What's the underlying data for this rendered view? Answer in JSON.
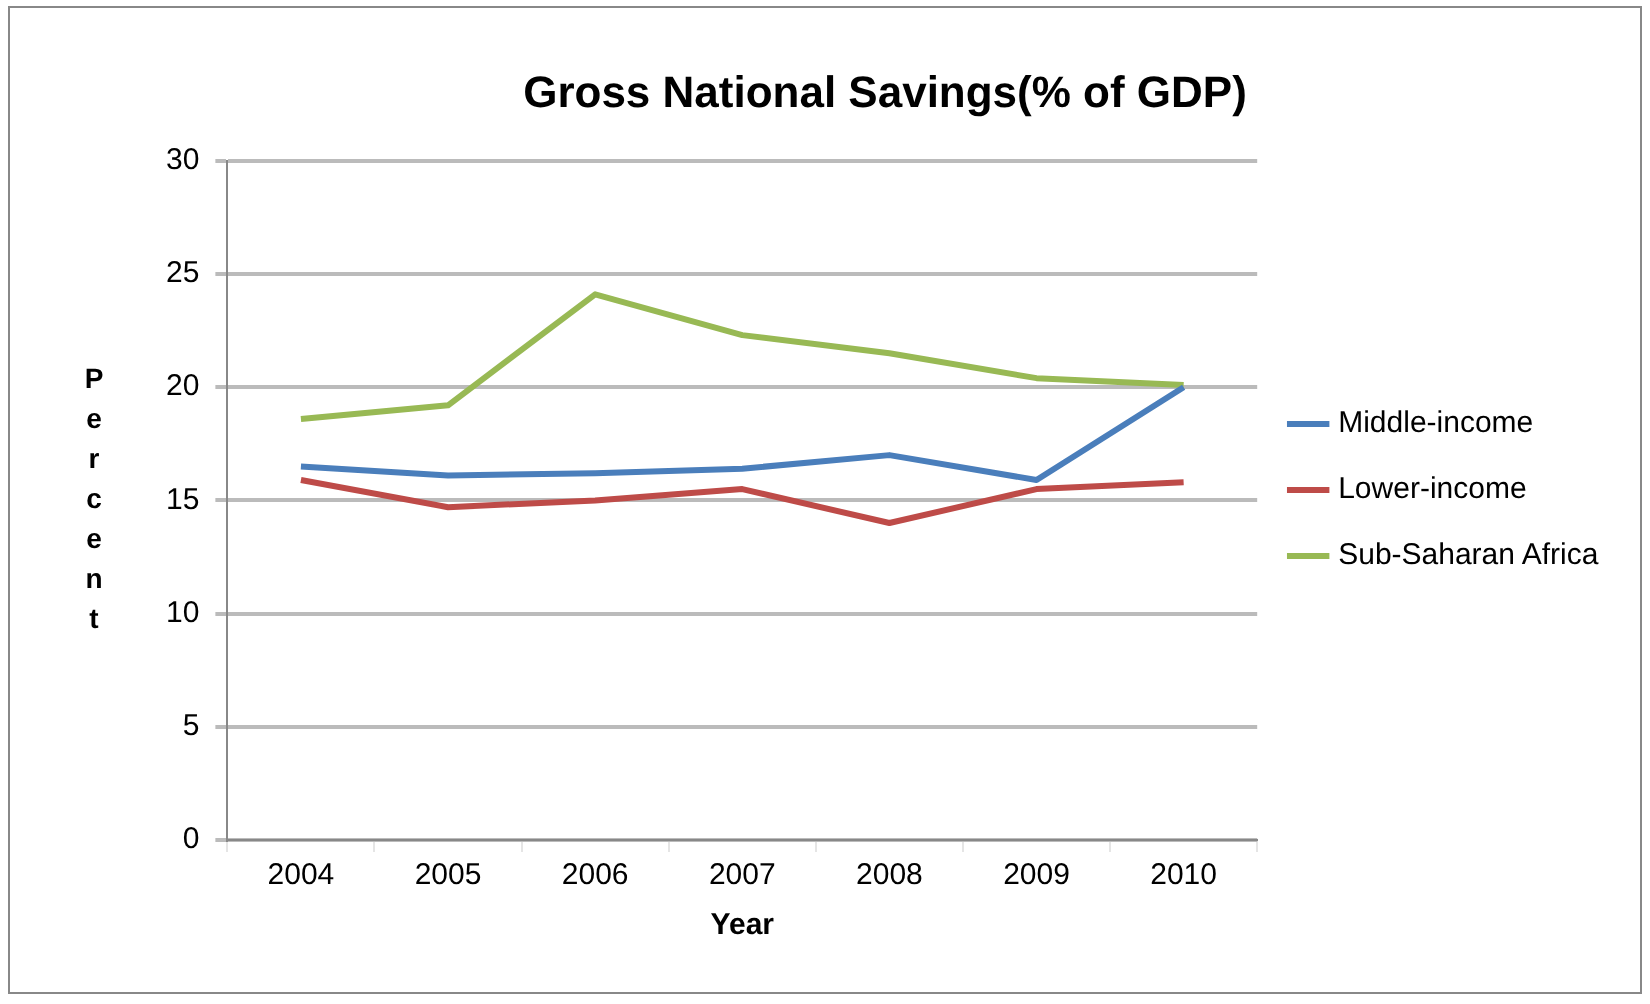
{
  "chart_data": {
    "type": "line",
    "title": "Gross National Savings(% of GDP)",
    "xlabel": "Year",
    "ylabel": "Percent",
    "categories": [
      "2004",
      "2005",
      "2006",
      "2007",
      "2008",
      "2009",
      "2010"
    ],
    "series": [
      {
        "name": "Middle-income",
        "color": "#4a7ebb",
        "values": [
          16.5,
          16.1,
          16.2,
          16.4,
          17.0,
          15.9,
          20.0
        ]
      },
      {
        "name": "Lower-income",
        "color": "#be4b48",
        "values": [
          15.9,
          14.7,
          15.0,
          15.5,
          14.0,
          15.5,
          15.8
        ]
      },
      {
        "name": "Sub-Saharan Africa",
        "color": "#98b954",
        "values": [
          18.6,
          19.2,
          24.1,
          22.3,
          21.5,
          20.4,
          20.1
        ]
      }
    ],
    "ylim": [
      0,
      30
    ],
    "yticks": [
      0,
      5,
      10,
      15,
      20,
      25,
      30
    ],
    "grid": "y",
    "legend": "right",
    "marker": "none",
    "line_style": "solid"
  }
}
